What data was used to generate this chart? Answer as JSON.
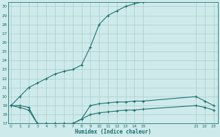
{
  "xlabel": "Humidex (Indice chaleur)",
  "bg_color": "#ceeaea",
  "grid_color": "#a8cccc",
  "line_color": "#1a6e6e",
  "ylim": [
    17,
    30.5
  ],
  "yticks": [
    17,
    18,
    19,
    20,
    21,
    22,
    23,
    24,
    25,
    26,
    27,
    28,
    29,
    30
  ],
  "xticks": [
    0,
    1,
    2,
    3,
    4,
    5,
    6,
    7,
    8,
    9,
    10,
    11,
    12,
    13,
    14,
    15,
    21,
    22,
    23
  ],
  "xlim": [
    -0.3,
    23.5
  ],
  "series": [
    {
      "x": [
        0,
        1,
        2,
        3,
        4,
        5,
        6,
        7,
        8,
        9,
        10,
        11,
        12,
        13,
        14,
        15
      ],
      "y": [
        19,
        20,
        21,
        21.5,
        22,
        22.5,
        22.8,
        23,
        23.5,
        25.5,
        28,
        29,
        29.5,
        30,
        30.3,
        30.5
      ]
    },
    {
      "x": [
        0,
        1,
        2,
        3,
        4,
        5,
        6,
        7,
        8,
        9,
        10,
        11,
        12,
        13,
        14,
        15,
        21,
        22,
        23
      ],
      "y": [
        19,
        19,
        18.8,
        17,
        17,
        17,
        17,
        17,
        17.5,
        19,
        19.2,
        19.3,
        19.4,
        19.4,
        19.5,
        19.5,
        20,
        19.5,
        19
      ]
    },
    {
      "x": [
        0,
        1,
        2,
        3,
        4,
        5,
        6,
        7,
        8,
        9,
        10,
        11,
        12,
        13,
        14,
        15,
        21,
        22,
        23
      ],
      "y": [
        19,
        18.8,
        18.5,
        17,
        17,
        17,
        17,
        17,
        17.5,
        18,
        18.2,
        18.3,
        18.4,
        18.5,
        18.5,
        18.6,
        19,
        18.8,
        18.5
      ]
    }
  ]
}
